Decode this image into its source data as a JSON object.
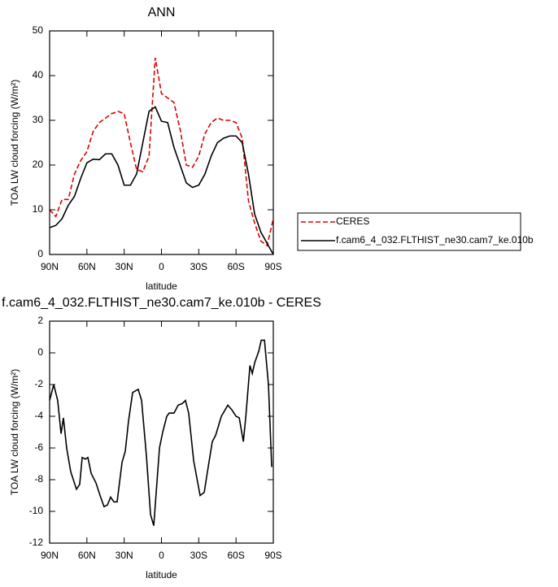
{
  "chart_data": [
    {
      "type": "line",
      "title": "ANN",
      "xlabel": "latitude",
      "ylabel": "TOA LW cloud forcing (W/m²)",
      "x": [
        90,
        85,
        80,
        75,
        70,
        65,
        60,
        55,
        50,
        45,
        40,
        35,
        30,
        25,
        20,
        15,
        10,
        5,
        0,
        -5,
        -10,
        -15,
        -20,
        -25,
        -30,
        -35,
        -40,
        -45,
        -50,
        -55,
        -60,
        -65,
        -70,
        -75,
        -80,
        -85,
        -90
      ],
      "series": [
        {
          "name": "CERES",
          "color": "#dd0000",
          "style": "dashed",
          "values": [
            10,
            8.5,
            12.3,
            12.3,
            18,
            21,
            23,
            27.5,
            29.5,
            30.5,
            31.5,
            32,
            31.5,
            25,
            19,
            18.5,
            22,
            44,
            36,
            35,
            34,
            28,
            20,
            19.5,
            22,
            27,
            29.5,
            30.5,
            30,
            30,
            29.5,
            26,
            12,
            7,
            3,
            2,
            8
          ]
        },
        {
          "name": "f.cam6_4_032.FLTHIST_ne30.cam7_ke.010b",
          "color": "#000000",
          "style": "solid",
          "values": [
            6,
            6.5,
            8,
            11,
            13,
            17,
            20.5,
            21.3,
            21.2,
            22.5,
            22.5,
            20,
            15.5,
            15.5,
            18,
            25,
            32,
            33,
            29.8,
            29.5,
            24,
            20,
            16,
            15,
            15.5,
            18,
            22,
            25,
            26,
            26.5,
            26.5,
            25,
            18,
            9,
            5,
            2.5,
            0
          ]
        }
      ],
      "xlim": [
        90,
        -90
      ],
      "xticks": [
        {
          "value": 90,
          "label": "90N"
        },
        {
          "value": 60,
          "label": "60N"
        },
        {
          "value": 30,
          "label": "30N"
        },
        0,
        {
          "value": -30,
          "label": "30S"
        },
        {
          "value": -60,
          "label": "60S"
        },
        {
          "value": -90,
          "label": "90S"
        }
      ],
      "ylim": [
        0,
        50
      ],
      "yticks": [
        0,
        10,
        20,
        30,
        40,
        50
      ],
      "legend": "right"
    },
    {
      "type": "line",
      "title": "f.cam6_4_032.FLTHIST_ne30.cam7_ke.010b - CERES",
      "xlabel": "latitude",
      "ylabel": "TOA LW cloud forcing (W/m²)",
      "x": [
        90,
        86.7,
        83.5,
        80.8,
        78.9,
        76.3,
        73,
        68.4,
        65.8,
        63.8,
        61.2,
        59.2,
        56.6,
        52.7,
        49.4,
        46.2,
        43.5,
        40.9,
        38.3,
        35.7,
        31.7,
        29.1,
        26.5,
        23.2,
        18.7,
        16,
        12.1,
        8.8,
        6.2,
        1.6,
        -1,
        -4.3,
        -6.2,
        -10.1,
        -13.4,
        -16.7,
        -19.3,
        -21.9,
        -25.9,
        -31.1,
        -34.4,
        -37,
        -40.9,
        -43.6,
        -48.2,
        -53.4,
        -56.7,
        -60,
        -62.6,
        -65.9,
        -67.9,
        -71.2,
        -73.1,
        -75.1,
        -78.3,
        -80.3,
        -82.9,
        -86.1,
        -88.7
      ],
      "series": [
        {
          "color": "#000000",
          "style": "solid",
          "values": [
            -3,
            -2,
            -3,
            -5.1,
            -4.1,
            -6,
            -7.5,
            -8.6,
            -8.3,
            -6.6,
            -6.7,
            -6.6,
            -7.6,
            -8.2,
            -9,
            -9.7,
            -9.6,
            -9.1,
            -9.4,
            -9.4,
            -6.9,
            -6.2,
            -4.3,
            -2.5,
            -2.3,
            -3,
            -6.5,
            -10.2,
            -10.9,
            -6,
            -5,
            -4,
            -3.8,
            -3.8,
            -3.3,
            -3.2,
            -3,
            -3.8,
            -6.8,
            -9,
            -8.8,
            -7.5,
            -5.6,
            -5.2,
            -4,
            -3.3,
            -3.6,
            -4,
            -4.1,
            -5.6,
            -4,
            -0.8,
            -1.3,
            -0.6,
            0.1,
            0.8,
            0.8,
            -2,
            -7.2
          ]
        }
      ],
      "xlim": [
        90,
        -90
      ],
      "xticks": [
        {
          "value": 90,
          "label": "90N"
        },
        {
          "value": 60,
          "label": "60N"
        },
        {
          "value": 30,
          "label": "30N"
        },
        0,
        {
          "value": -30,
          "label": "30S"
        },
        {
          "value": -60,
          "label": "60S"
        },
        {
          "value": -90,
          "label": "90S"
        }
      ],
      "ylim": [
        -12,
        2
      ],
      "yticks": [
        -12,
        -10,
        -8,
        -6,
        -4,
        -2,
        0,
        2
      ]
    }
  ]
}
